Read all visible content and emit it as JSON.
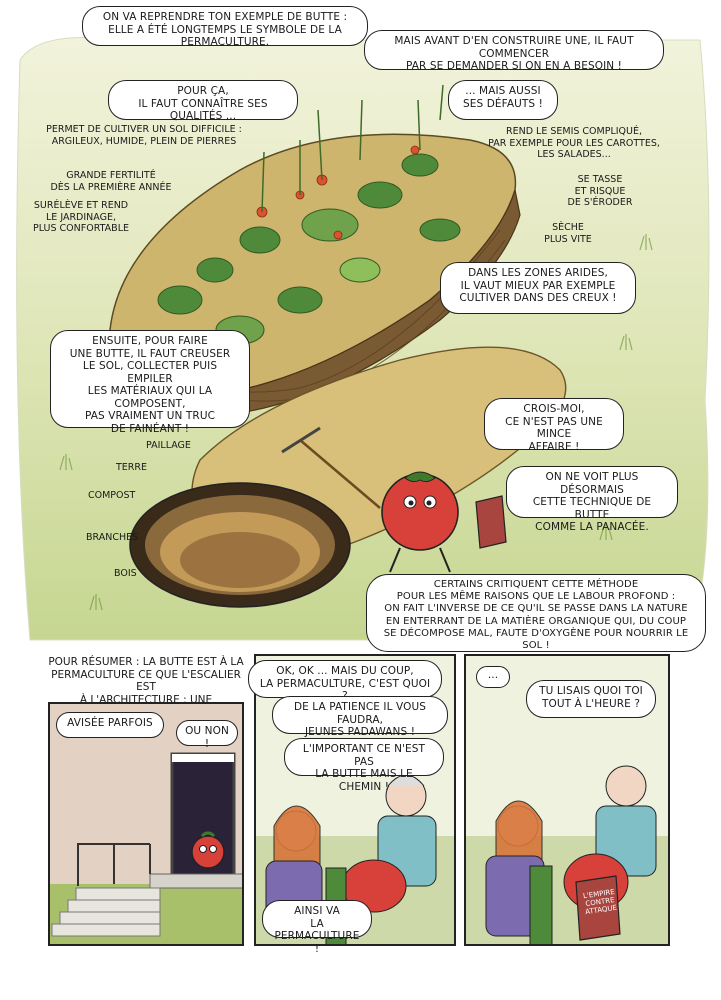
{
  "top_panel": {
    "bubbles": {
      "b1": "ON VA REPRENDRE TON EXEMPLE DE BUTTE :\nELLE A ÉTÉ LONGTEMPS LE SYMBOLE DE LA PERMACULTURE.",
      "b2": "MAIS AVANT D'EN CONSTRUIRE UNE, IL FAUT COMMENCER\nPAR SE DEMANDER SI ON EN A BESOIN !",
      "b3": "POUR ÇA,\nIL FAUT CONNAÎTRE SES QUALITÉS ...",
      "b4": "... MAIS AUSSI\nSES DÉFAUTS !",
      "b5": "DANS LES ZONES ARIDES,\nIL VAUT MIEUX PAR EXEMPLE\nCULTIVER DANS DES CREUX !",
      "b6": "ENSUITE, POUR FAIRE\nUNE BUTTE, IL FAUT CREUSER\nLE SOL, COLLECTER PUIS EMPILER\nLES MATÉRIAUX QUI LA COMPOSENT,\nPAS VRAIMENT UN TRUC\nDE FAINÉANT !",
      "b7": "CROIS-MOI,\nCE N'EST PAS UNE MINCE\nAFFAIRE !",
      "b8": "ON NE VOIT PLUS DÉSORMAIS\nCETTE TECHNIQUE DE BUTTE\nCOMME LA PANACÉE.",
      "b9": "CERTAINS CRITIQUENT CETTE MÉTHODE\nPOUR LES MÊME RAISONS QUE LE LABOUR PROFOND :\nON FAIT L'INVERSE DE CE QU'IL SE PASSE DANS LA NATURE\nEN ENTERRANT DE LA MATIÈRE ORGANIQUE QUI, DU COUP\nSE DÉCOMPOSE MAL, FAUTE D'OXYGÈNE POUR NOURRIR LE SOL !"
    },
    "qualities": {
      "q1": "PERMET DE CULTIVER UN SOL DIFFICILE :\nARGILEUX, HUMIDE, PLEIN DE PIERRES",
      "q2": "GRANDE FERTILITÉ\nDÈS LA PREMIÈRE ANNÉE",
      "q3": "SURÉLÈVE ET REND\nLE JARDINAGE,\nPLUS CONFORTABLE"
    },
    "defects": {
      "d1": "REND LE SEMIS COMPLIQUÉ,\nPAR EXEMPLE POUR LES CAROTTES,\nLES SALADES...",
      "d2": "SE TASSE\nET RISQUE\nDE S'ÉRODER",
      "d3": "SÈCHE\nPLUS VITE"
    },
    "layers": {
      "paillage": "PAILLAGE",
      "terre": "TERRE",
      "compost": "COMPOST",
      "branches": "BRANCHES",
      "bois": "BOIS"
    }
  },
  "panel_a": {
    "caption": "POUR RÉSUMER : LA BUTTE EST À LA\nPERMACULTURE CE QUE L'ESCALIER EST\nÀ L'ARCHITECTURE : UNE TECHNIQUE...",
    "b1": "AVISÉE PARFOIS",
    "b2": "OU NON !"
  },
  "panel_b": {
    "b1": "OK, OK ... MAIS DU COUP,\nLA PERMACULTURE, C'EST QUOI ?",
    "b2": "DE LA PATIENCE IL VOUS FAUDRA,\nJEUNES PADAWANS !",
    "b3": "L'IMPORTANT CE N'EST PAS\nLA BUTTE MAIS LE CHEMIN !",
    "b4": "AINSI VA\nLA PERMACULTURE !"
  },
  "panel_c": {
    "b1": "...",
    "b2": "TU LISAIS QUOI TOI\nTOUT À L'HEURE ?",
    "book_title": "L'EMPIRE CONTRE ATTAQUE"
  },
  "colors": {
    "sky": "#e8ecc6",
    "grass": "#b8c97a",
    "mound": "#cdb56d",
    "straw": "#d6c27e",
    "wall": "#e3d2c4",
    "tomato": "#d8413a",
    "shirt": "#7d6bb0",
    "apron": "#5aa59b"
  }
}
